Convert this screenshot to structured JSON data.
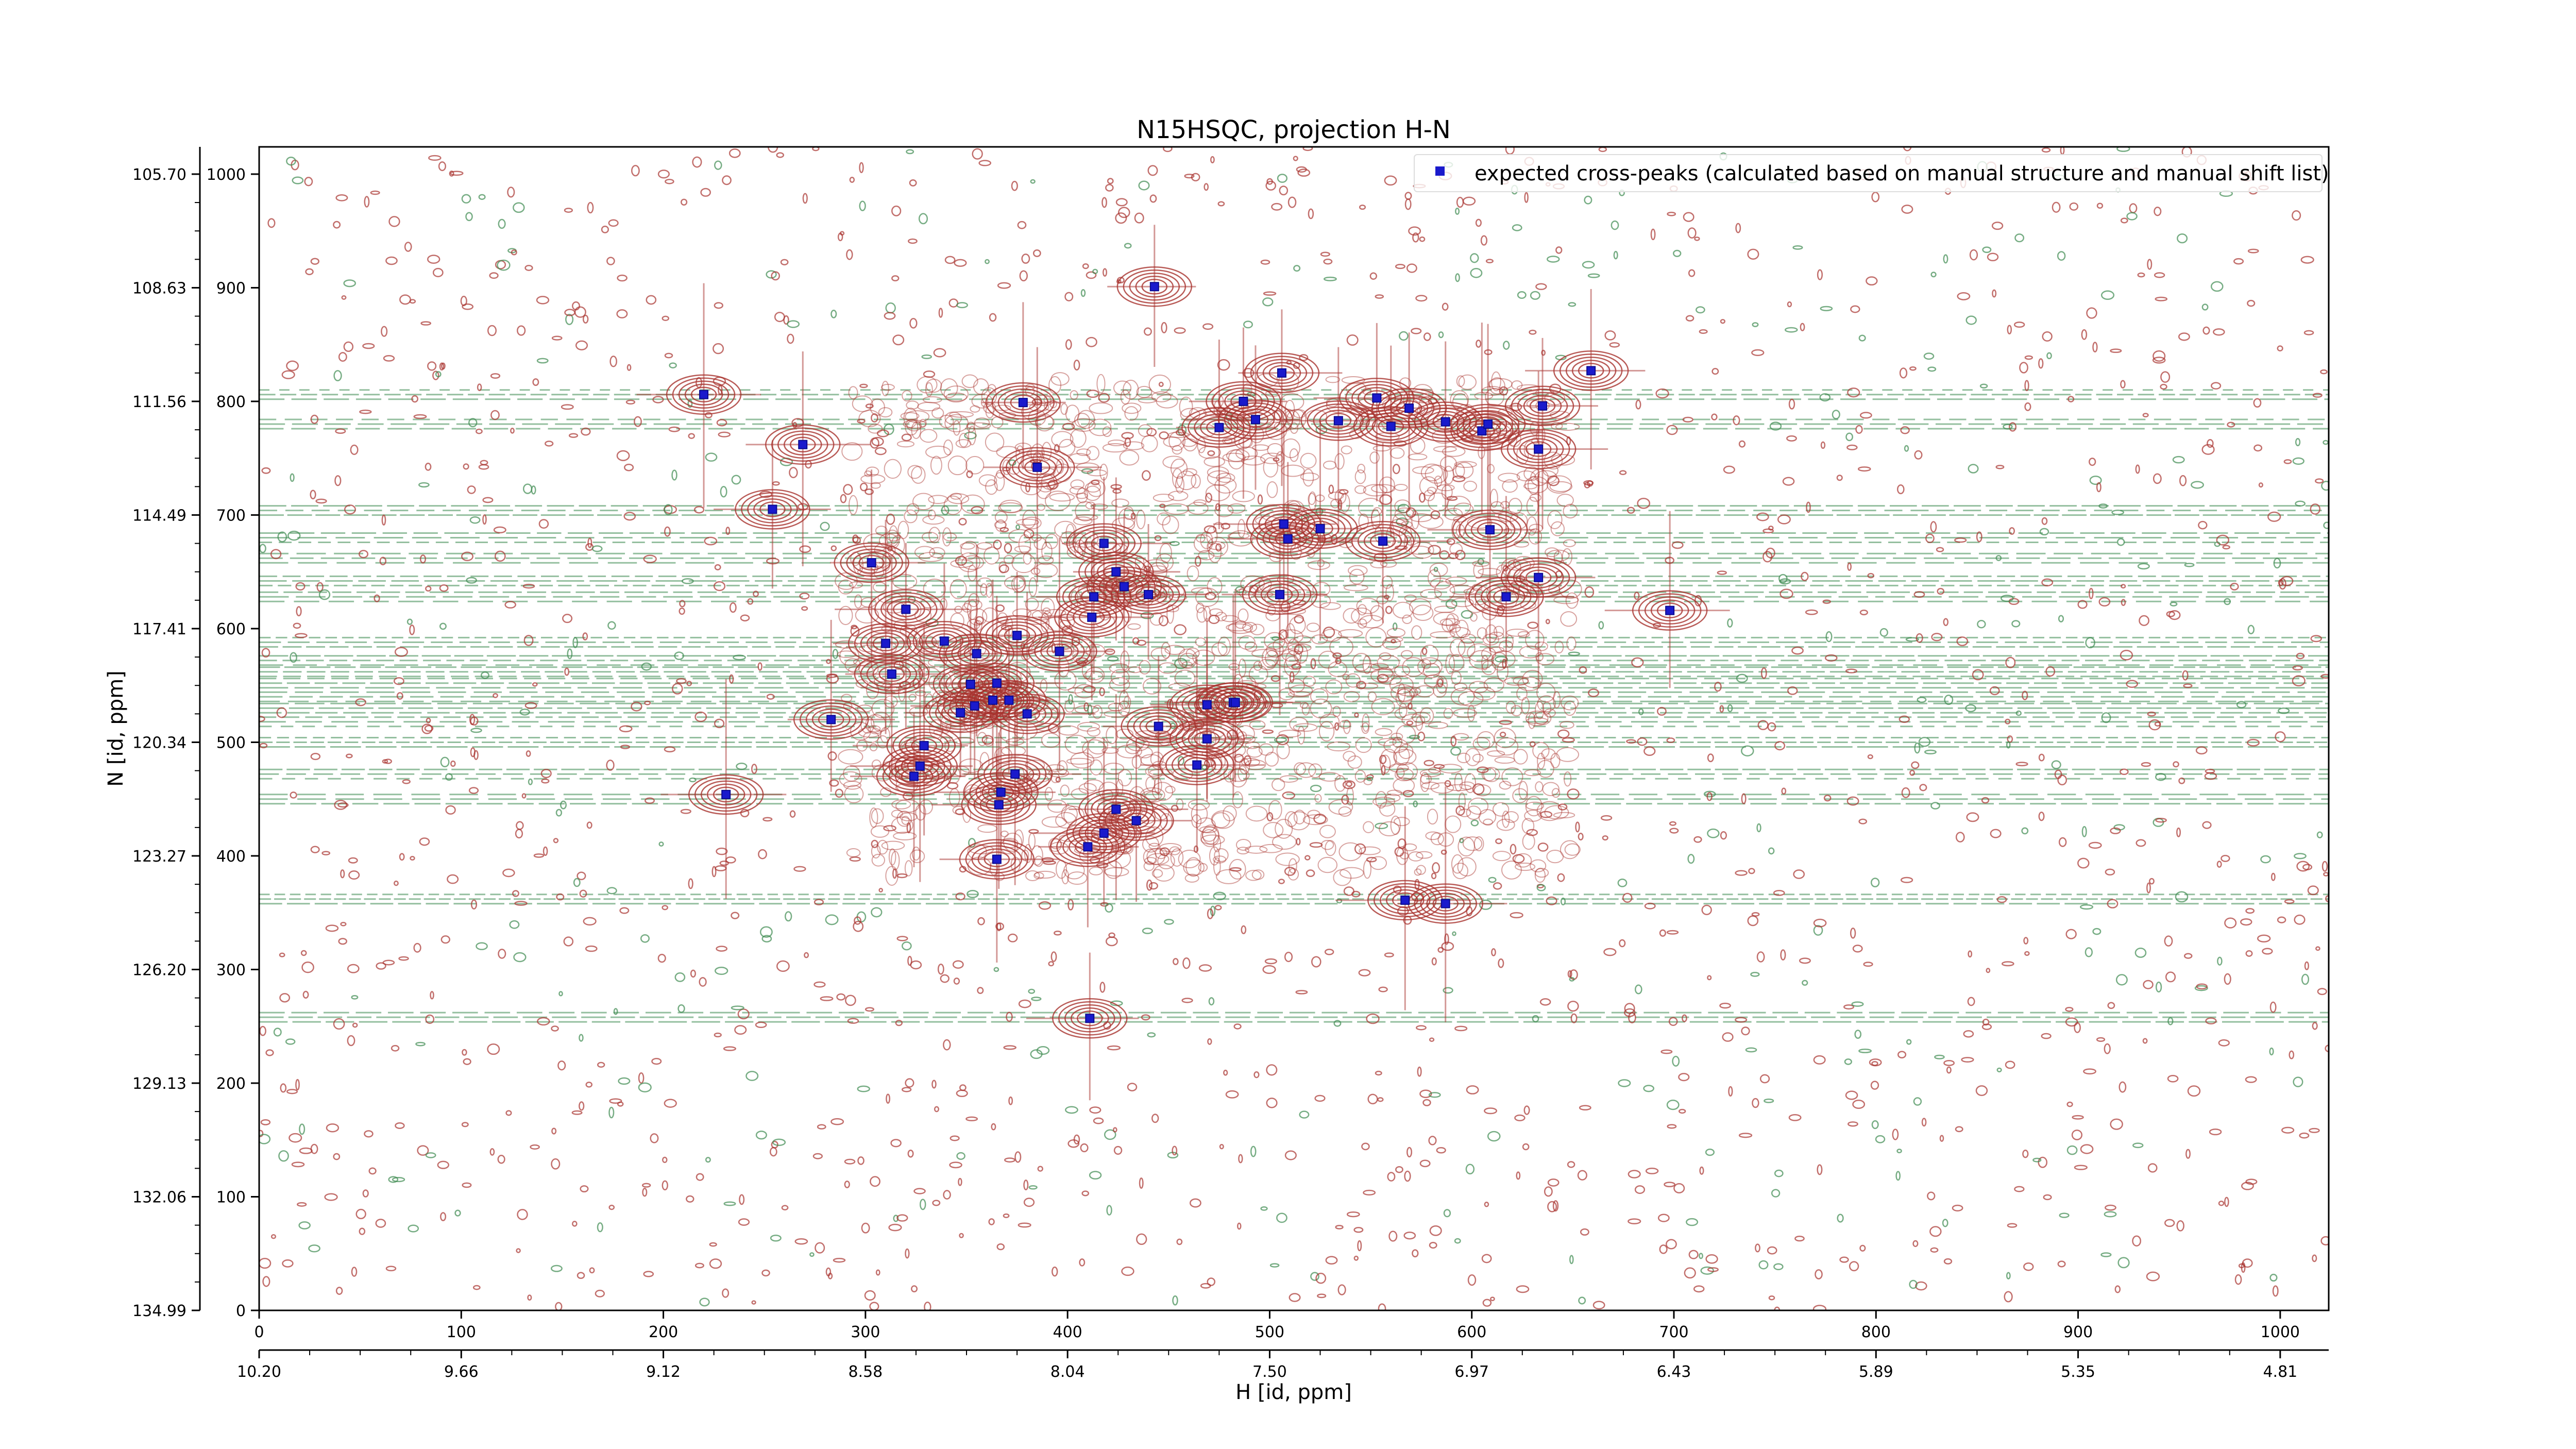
{
  "chart_data": {
    "type": "scatter",
    "title": "N15HSQC, projection H-N",
    "xlabel": "H [id, ppm]",
    "ylabel": "N [id, ppm]",
    "xlim": [
      0,
      1024
    ],
    "ylim": [
      0,
      1024
    ],
    "x_ticks": [
      "0",
      "100",
      "200",
      "300",
      "400",
      "500",
      "600",
      "700",
      "800",
      "900",
      "1000"
    ],
    "x_ppm_ticks": [
      "10.20",
      "9.66",
      "9.12",
      "8.58",
      "8.04",
      "7.50",
      "6.97",
      "6.43",
      "5.89",
      "5.35",
      "4.81"
    ],
    "y_ticks": [
      "0",
      "100",
      "200",
      "300",
      "400",
      "500",
      "600",
      "700",
      "800",
      "900",
      "1000"
    ],
    "y_ppm_ticks": [
      "134.99",
      "132.06",
      "129.13",
      "126.20",
      "123.27",
      "120.34",
      "117.41",
      "114.49",
      "111.56",
      "108.63",
      "105.70"
    ],
    "grid": false,
    "legend": "top-right",
    "colors": {
      "positive_contour": "#a8322d",
      "negative_contour": "#3d8a50",
      "marker": "#1a1acc"
    },
    "series": [
      {
        "name": "expected cross-peaks (calculated based on manual structure and manual shift list)",
        "x": [
          220,
          443,
          378,
          269,
          385,
          254,
          506,
          487,
          493,
          475,
          553,
          534,
          569,
          560,
          587,
          605,
          608,
          659,
          635,
          633,
          507,
          525,
          509,
          556,
          609,
          303,
          418,
          424,
          413,
          440,
          428,
          396,
          320,
          310,
          339,
          313,
          375,
          355,
          365,
          354,
          371,
          352,
          363,
          380,
          347,
          412,
          445,
          469,
          482,
          469,
          464,
          483,
          283,
          329,
          327,
          324,
          374,
          366,
          367,
          424,
          434,
          418,
          410,
          365,
          567,
          587,
          231,
          411,
          698,
          617,
          633,
          505
        ],
        "y": [
          806,
          901,
          799,
          762,
          742,
          705,
          825,
          800,
          784,
          777,
          803,
          783,
          794,
          778,
          782,
          774,
          780,
          827,
          796,
          758,
          692,
          688,
          679,
          677,
          687,
          658,
          675,
          650,
          628,
          630,
          637,
          580,
          617,
          587,
          589,
          560,
          594,
          578,
          552,
          532,
          537,
          551,
          537,
          525,
          526,
          610,
          514,
          533,
          535,
          503,
          480,
          535,
          520,
          497,
          479,
          470,
          472,
          445,
          456,
          441,
          431,
          420,
          408,
          397,
          361,
          358,
          454,
          257,
          616,
          628,
          645,
          630
        ]
      }
    ]
  }
}
